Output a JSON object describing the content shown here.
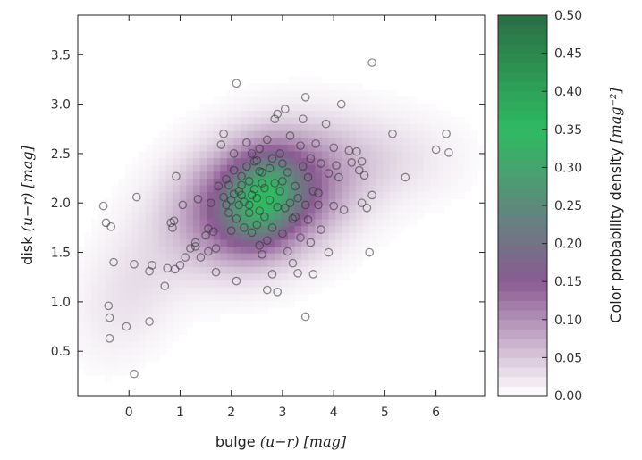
{
  "chart_data": {
    "type": "scatter",
    "xlabel": {
      "prefix": "bulge ",
      "math": "(u−r) [mag]"
    },
    "ylabel": {
      "prefix": "disk ",
      "math": "(u−r) [mag]"
    },
    "xlim": [
      -1.0,
      6.95
    ],
    "ylim": [
      0.05,
      3.9
    ],
    "xticks": [
      0,
      1,
      2,
      3,
      4,
      5,
      6
    ],
    "xtick_labels": [
      "0",
      "1",
      "2",
      "3",
      "4",
      "5",
      "6"
    ],
    "yticks": [
      0.5,
      1.0,
      1.5,
      2.0,
      2.5,
      3.0,
      3.5
    ],
    "ytick_labels": [
      "0.5",
      "1.0",
      "1.5",
      "2.0",
      "2.5",
      "3.0",
      "3.5"
    ],
    "grid": false,
    "colors": {
      "low": "#ffffff",
      "mid": "#8b5a92",
      "high": "#2fbb62",
      "top": "#2a6f45",
      "points": "#333333"
    },
    "density": {
      "type": "heatmap",
      "description_free": true,
      "components": [
        {
          "center": [
            2.6,
            2.05
          ],
          "sigma": [
            1.05,
            0.42
          ],
          "rho": 0.25,
          "weight": 1.0
        },
        {
          "center": [
            2.6,
            2.05
          ],
          "sigma": [
            0.45,
            0.3
          ],
          "rho": 0.2,
          "weight": 0.6
        },
        {
          "center": [
            5.0,
            2.45
          ],
          "sigma": [
            1.0,
            0.3
          ],
          "rho": 0.0,
          "weight": 0.12
        },
        {
          "center": [
            0.0,
            1.1
          ],
          "sigma": [
            0.7,
            0.45
          ],
          "rho": 0.3,
          "weight": 0.12
        }
      ],
      "peak_value": 0.36
    },
    "colorbar": {
      "label": "Color probability density",
      "label_unit": "[mag⁻²]",
      "min": 0.0,
      "max": 0.5,
      "ticks": [
        0.0,
        0.05,
        0.1,
        0.15,
        0.2,
        0.25,
        0.3,
        0.35,
        0.4,
        0.45,
        0.5
      ],
      "tick_labels": [
        "0.00",
        "0.05",
        "0.10",
        "0.15",
        "0.20",
        "0.25",
        "0.30",
        "0.35",
        "0.40",
        "0.45",
        "0.50"
      ]
    },
    "points": [
      [
        -0.5,
        1.97
      ],
      [
        -0.45,
        1.8
      ],
      [
        -0.35,
        1.76
      ],
      [
        -0.3,
        1.4
      ],
      [
        -0.4,
        0.96
      ],
      [
        -0.38,
        0.84
      ],
      [
        -0.38,
        0.63
      ],
      [
        -0.05,
        0.75
      ],
      [
        0.1,
        0.27
      ],
      [
        0.1,
        1.38
      ],
      [
        0.4,
        1.31
      ],
      [
        0.45,
        1.37
      ],
      [
        0.4,
        0.8
      ],
      [
        0.15,
        2.06
      ],
      [
        0.7,
        1.16
      ],
      [
        0.75,
        1.34
      ],
      [
        0.82,
        1.8
      ],
      [
        0.85,
        1.75
      ],
      [
        0.88,
        1.82
      ],
      [
        0.9,
        1.33
      ],
      [
        1.0,
        1.37
      ],
      [
        1.05,
        1.98
      ],
      [
        0.92,
        2.27
      ],
      [
        1.1,
        1.45
      ],
      [
        1.2,
        1.54
      ],
      [
        1.3,
        1.56
      ],
      [
        1.4,
        1.45
      ],
      [
        1.3,
        1.6
      ],
      [
        1.35,
        2.04
      ],
      [
        1.5,
        1.67
      ],
      [
        1.55,
        1.51
      ],
      [
        1.55,
        1.74
      ],
      [
        1.6,
        2.0
      ],
      [
        1.65,
        1.71
      ],
      [
        1.7,
        1.54
      ],
      [
        1.7,
        1.3
      ],
      [
        1.75,
        2.17
      ],
      [
        1.8,
        2.59
      ],
      [
        1.85,
        2.7
      ],
      [
        1.85,
        2.06
      ],
      [
        1.9,
        1.98
      ],
      [
        1.9,
        2.24
      ],
      [
        1.95,
        1.9
      ],
      [
        2.0,
        2.03
      ],
      [
        2.0,
        1.72
      ],
      [
        2.05,
        2.09
      ],
      [
        2.05,
        2.33
      ],
      [
        2.05,
        2.5
      ],
      [
        2.1,
        1.21
      ],
      [
        2.1,
        1.84
      ],
      [
        2.1,
        3.21
      ],
      [
        2.15,
        2.12
      ],
      [
        2.15,
        1.98
      ],
      [
        2.2,
        2.27
      ],
      [
        2.2,
        2.18
      ],
      [
        2.25,
        2.01
      ],
      [
        2.25,
        1.75
      ],
      [
        2.3,
        2.37
      ],
      [
        2.3,
        2.61
      ],
      [
        2.35,
        1.9
      ],
      [
        2.35,
        2.22
      ],
      [
        2.4,
        2.5
      ],
      [
        2.4,
        2.08
      ],
      [
        2.4,
        1.7
      ],
      [
        2.45,
        2.42
      ],
      [
        2.45,
        2.14
      ],
      [
        2.5,
        2.43
      ],
      [
        2.5,
        2.05
      ],
      [
        2.5,
        1.78
      ],
      [
        2.55,
        1.57
      ],
      [
        2.55,
        2.55
      ],
      [
        2.55,
        1.92
      ],
      [
        2.6,
        1.48
      ],
      [
        2.6,
        2.31
      ],
      [
        2.65,
        2.15
      ],
      [
        2.65,
        1.86
      ],
      [
        2.7,
        1.62
      ],
      [
        2.7,
        1.12
      ],
      [
        2.7,
        2.64
      ],
      [
        2.75,
        2.03
      ],
      [
        2.8,
        2.45
      ],
      [
        2.8,
        1.75
      ],
      [
        2.8,
        1.28
      ],
      [
        2.85,
        2.85
      ],
      [
        2.85,
        2.2
      ],
      [
        2.9,
        1.96
      ],
      [
        2.9,
        2.9
      ],
      [
        2.9,
        1.1
      ],
      [
        2.95,
        2.5
      ],
      [
        2.95,
        2.12
      ],
      [
        3.0,
        1.69
      ],
      [
        3.0,
        2.22
      ],
      [
        3.05,
        2.95
      ],
      [
        3.05,
        1.95
      ],
      [
        3.1,
        2.31
      ],
      [
        3.1,
        1.51
      ],
      [
        3.15,
        2.0
      ],
      [
        3.15,
        2.68
      ],
      [
        3.2,
        1.39
      ],
      [
        3.2,
        1.84
      ],
      [
        3.25,
        2.17
      ],
      [
        3.3,
        1.29
      ],
      [
        3.3,
        2.05
      ],
      [
        3.35,
        2.58
      ],
      [
        3.35,
        1.65
      ],
      [
        3.4,
        2.85
      ],
      [
        3.4,
        2.37
      ],
      [
        3.45,
        1.98
      ],
      [
        3.45,
        3.07
      ],
      [
        3.45,
        0.85
      ],
      [
        3.5,
        1.83
      ],
      [
        3.5,
        2.26
      ],
      [
        3.55,
        2.45
      ],
      [
        3.55,
        1.6
      ],
      [
        3.6,
        1.28
      ],
      [
        3.6,
        2.12
      ],
      [
        3.65,
        2.6
      ],
      [
        3.7,
        1.98
      ],
      [
        3.75,
        2.4
      ],
      [
        3.75,
        1.73
      ],
      [
        3.85,
        2.8
      ],
      [
        3.9,
        2.3
      ],
      [
        3.9,
        1.5
      ],
      [
        4.0,
        2.56
      ],
      [
        4.0,
        1.97
      ],
      [
        4.05,
        2.38
      ],
      [
        4.1,
        2.26
      ],
      [
        4.15,
        3.0
      ],
      [
        4.2,
        1.93
      ],
      [
        4.3,
        2.53
      ],
      [
        4.35,
        2.41
      ],
      [
        4.45,
        2.52
      ],
      [
        4.5,
        2.33
      ],
      [
        4.55,
        2.42
      ],
      [
        4.55,
        2.0
      ],
      [
        4.6,
        2.28
      ],
      [
        4.65,
        1.95
      ],
      [
        4.7,
        1.5
      ],
      [
        4.75,
        2.08
      ],
      [
        4.75,
        3.42
      ],
      [
        5.15,
        2.7
      ],
      [
        5.4,
        2.26
      ],
      [
        6.0,
        2.54
      ],
      [
        6.2,
        2.7
      ],
      [
        6.25,
        2.51
      ],
      [
        2.6,
        2.2
      ],
      [
        2.55,
        2.32
      ],
      [
        2.75,
        2.35
      ],
      [
        3.0,
        2.4
      ],
      [
        2.2,
        2.08
      ],
      [
        2.35,
        1.98
      ],
      [
        1.95,
        2.18
      ],
      [
        3.25,
        1.86
      ],
      [
        3.7,
        2.1
      ]
    ]
  }
}
